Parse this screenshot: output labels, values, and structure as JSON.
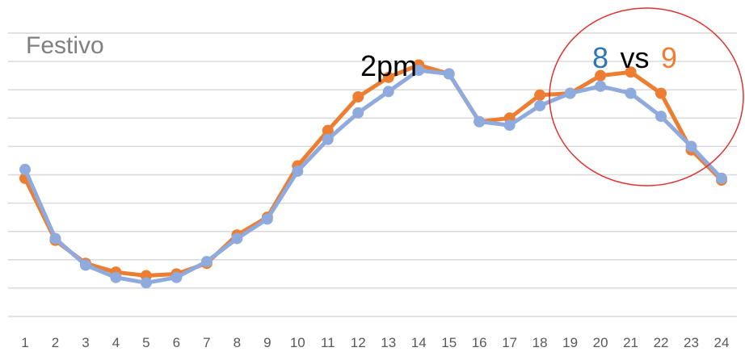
{
  "chart_data": {
    "type": "line",
    "title": "Festivo",
    "categories": [
      "1",
      "2",
      "3",
      "4",
      "5",
      "6",
      "7",
      "8",
      "9",
      "10",
      "11",
      "12",
      "13",
      "14",
      "15",
      "16",
      "17",
      "18",
      "19",
      "20",
      "21",
      "22",
      "23",
      "24"
    ],
    "ylim": [
      0,
      16
    ],
    "grid": true,
    "legend": "none",
    "series": [
      {
        "color": "#ed7d31",
        "values": [
          7.8,
          4.3,
          3.0,
          2.5,
          2.3,
          2.4,
          3.0,
          4.6,
          5.6,
          8.5,
          10.5,
          12.4,
          13.5,
          14.2,
          13.7,
          11.0,
          11.2,
          12.5,
          12.6,
          13.6,
          13.8,
          12.6,
          9.4,
          7.7
        ]
      },
      {
        "color": "#8faadc",
        "values": [
          8.3,
          4.4,
          2.9,
          2.2,
          1.9,
          2.2,
          3.1,
          4.4,
          5.5,
          8.2,
          10.0,
          11.5,
          12.7,
          13.9,
          13.7,
          11.0,
          10.8,
          11.9,
          12.6,
          13.0,
          12.6,
          11.3,
          9.6,
          7.8
        ]
      }
    ],
    "annotations": {
      "peak_label": "2pm",
      "compare_a": "8",
      "compare_vs": "vs",
      "compare_b": "9",
      "compare_a_color": "#2e75b6",
      "compare_b_color": "#ed7d31",
      "circle_color": "#e03030"
    }
  }
}
